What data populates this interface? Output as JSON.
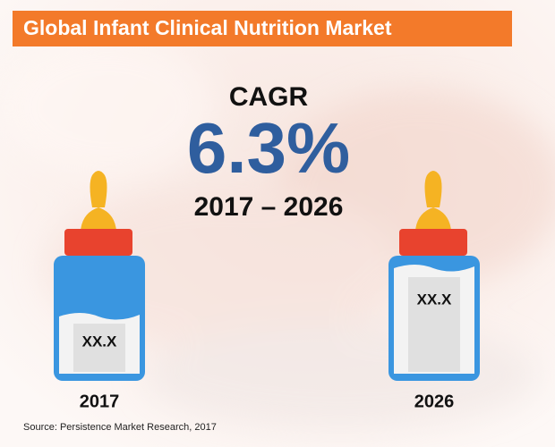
{
  "header": {
    "title": "Global Infant Clinical Nutrition Market"
  },
  "cagr": {
    "label": "CAGR",
    "value": "6.3%",
    "period": "2017 – 2026"
  },
  "bottles": [
    {
      "label": "XX.X",
      "year": "2017"
    },
    {
      "label": "XX.X",
      "year": "2026"
    }
  ],
  "source": "Source: Persistence Market Research, 2017"
}
